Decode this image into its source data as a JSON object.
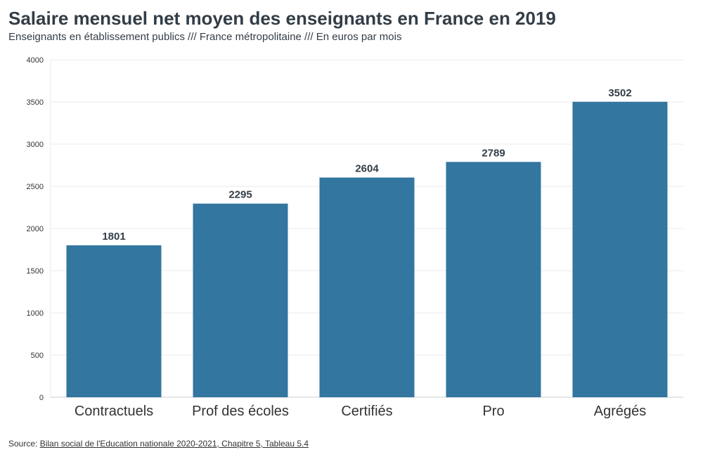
{
  "title": "Salaire mensuel net moyen des enseignants en France en 2019",
  "subtitle": "Enseignants en établissement publics /// France métropolitaine /// En euros par mois",
  "source": {
    "prefix": "Source: ",
    "link_text": "Bilan social de l'Education nationale 2020-2021, Chapitre 5, Tableau 5.4"
  },
  "colors": {
    "bar": "#33769f",
    "grid": "#ebebeb",
    "axis": "#cccccc"
  },
  "chart_data": {
    "type": "bar",
    "title": "Salaire mensuel net moyen des enseignants en France en 2019",
    "subtitle": "Enseignants en établissement publics /// France métropolitaine /// En euros par mois",
    "categories": [
      "Contractuels",
      "Prof des écoles",
      "Certifiés",
      "Pro",
      "Agrégés"
    ],
    "values": [
      1801,
      2295,
      2604,
      2789,
      3502
    ],
    "data_labels": [
      "1801",
      "2295",
      "2604",
      "2789",
      "3502"
    ],
    "ylim": [
      0,
      4000
    ],
    "yticks": [
      0,
      500,
      1000,
      1500,
      2000,
      2500,
      3000,
      3500,
      4000
    ],
    "grid": true,
    "legend": "none"
  }
}
